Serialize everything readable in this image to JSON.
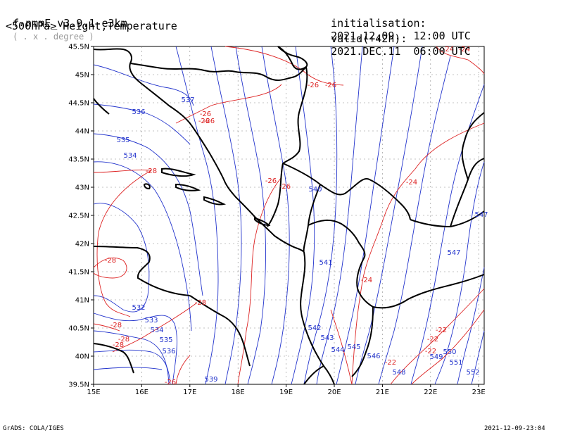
{
  "header": {
    "model": "f-nmmE_v3.9.1-e3km",
    "model_units": "( . x . degree )",
    "field": "<500hPa> Height,Temperature",
    "init_label": "initialisation:",
    "init_value": "2021.12.09.  12:00 UTC",
    "valid_label": "valid(+42h):",
    "valid_value": "2021.DEC.11  06:00 UTC"
  },
  "footer": {
    "left": "GrADS: COLA/IGES",
    "right": "2021-12-09-23:04"
  },
  "map": {
    "lat_ticks": [
      "39.5N",
      "40N",
      "40.5N",
      "41N",
      "41.5N",
      "42N",
      "42.5N",
      "43N",
      "43.5N",
      "44N",
      "44.5N",
      "45N",
      "45.5N"
    ],
    "lon_ticks": [
      "15E",
      "16E",
      "17E",
      "18E",
      "19E",
      "20E",
      "21E",
      "22E",
      "23E"
    ],
    "colors": {
      "height": "#2233cc",
      "temperature": "#dd2222",
      "coast": "#000000",
      "grid": "#888888"
    },
    "height_labels": [
      "536",
      "537",
      "535",
      "534",
      "532",
      "533",
      "534",
      "535",
      "536",
      "539",
      "540",
      "541",
      "542",
      "543",
      "544",
      "545",
      "546",
      "547",
      "548",
      "549",
      "550",
      "551",
      "552",
      "547"
    ],
    "temperature_labels": [
      "-24",
      "-24",
      "-26",
      "-26",
      "-26",
      "-26",
      "-26",
      "-28",
      "-26",
      "-26",
      "-24",
      "-28",
      "-24",
      "-28",
      "-28",
      "-28",
      "-28",
      "-26",
      "-22",
      "-22",
      "-22",
      "-22"
    ]
  }
}
